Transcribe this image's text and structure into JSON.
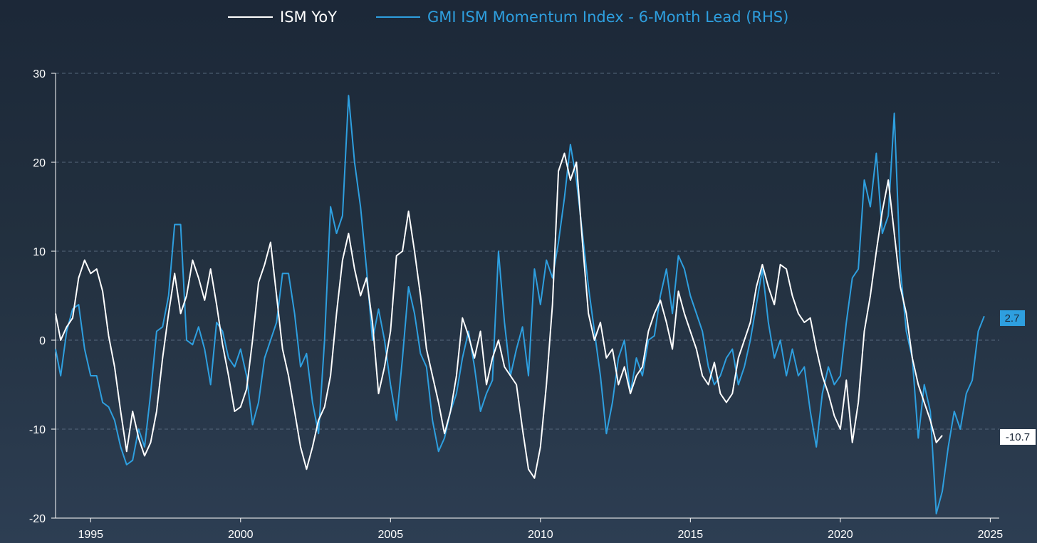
{
  "chart_data": {
    "type": "line",
    "title": "",
    "xlabel": "",
    "ylabel": "",
    "xlim": [
      1993.83,
      2025.3
    ],
    "ylim": [
      -20,
      30
    ],
    "x_ticks": [
      "1995",
      "2000",
      "2005",
      "2010",
      "2015",
      "2020",
      "2025"
    ],
    "y_ticks": [
      "30",
      "20",
      "10",
      "0",
      "-10",
      "-20"
    ],
    "grid": true,
    "legend_position": "top-center",
    "series": [
      {
        "name": "ISM YoY",
        "color": "#ffffff",
        "last_value_label": "-10.7",
        "points": [
          [
            1993.83,
            3.0
          ],
          [
            1994.0,
            0.0
          ],
          [
            1994.2,
            1.5
          ],
          [
            1994.4,
            2.5
          ],
          [
            1994.6,
            7.0
          ],
          [
            1994.8,
            9.0
          ],
          [
            1995.0,
            7.5
          ],
          [
            1995.2,
            8.0
          ],
          [
            1995.4,
            5.5
          ],
          [
            1995.6,
            0.5
          ],
          [
            1995.8,
            -3.0
          ],
          [
            1996.0,
            -8.0
          ],
          [
            1996.2,
            -12.5
          ],
          [
            1996.4,
            -8.0
          ],
          [
            1996.6,
            -11.0
          ],
          [
            1996.8,
            -13.0
          ],
          [
            1997.0,
            -11.5
          ],
          [
            1997.2,
            -8.0
          ],
          [
            1997.4,
            -2.0
          ],
          [
            1997.6,
            3.0
          ],
          [
            1997.8,
            7.5
          ],
          [
            1998.0,
            3.0
          ],
          [
            1998.2,
            5.0
          ],
          [
            1998.4,
            9.0
          ],
          [
            1998.6,
            7.0
          ],
          [
            1998.8,
            4.5
          ],
          [
            1999.0,
            8.0
          ],
          [
            1999.2,
            4.0
          ],
          [
            1999.4,
            -0.5
          ],
          [
            1999.6,
            -4.0
          ],
          [
            1999.8,
            -8.0
          ],
          [
            2000.0,
            -7.5
          ],
          [
            2000.2,
            -5.5
          ],
          [
            2000.4,
            0.0
          ],
          [
            2000.6,
            6.5
          ],
          [
            2000.8,
            8.5
          ],
          [
            2001.0,
            11.0
          ],
          [
            2001.2,
            5.0
          ],
          [
            2001.4,
            -1.0
          ],
          [
            2001.6,
            -4.0
          ],
          [
            2001.8,
            -8.0
          ],
          [
            2002.0,
            -12.0
          ],
          [
            2002.2,
            -14.5
          ],
          [
            2002.4,
            -12.0
          ],
          [
            2002.6,
            -9.0
          ],
          [
            2002.8,
            -7.5
          ],
          [
            2003.0,
            -4.0
          ],
          [
            2003.2,
            3.0
          ],
          [
            2003.4,
            9.0
          ],
          [
            2003.6,
            12.0
          ],
          [
            2003.8,
            8.0
          ],
          [
            2004.0,
            5.0
          ],
          [
            2004.2,
            7.0
          ],
          [
            2004.4,
            2.0
          ],
          [
            2004.6,
            -6.0
          ],
          [
            2004.8,
            -3.0
          ],
          [
            2005.0,
            1.0
          ],
          [
            2005.2,
            9.5
          ],
          [
            2005.4,
            10.0
          ],
          [
            2005.6,
            14.5
          ],
          [
            2005.8,
            10.0
          ],
          [
            2006.0,
            5.0
          ],
          [
            2006.2,
            -1.0
          ],
          [
            2006.4,
            -4.0
          ],
          [
            2006.6,
            -7.0
          ],
          [
            2006.8,
            -10.5
          ],
          [
            2007.0,
            -8.0
          ],
          [
            2007.2,
            -4.0
          ],
          [
            2007.4,
            2.5
          ],
          [
            2007.6,
            0.5
          ],
          [
            2007.8,
            -2.0
          ],
          [
            2008.0,
            1.0
          ],
          [
            2008.2,
            -5.0
          ],
          [
            2008.4,
            -2.0
          ],
          [
            2008.6,
            0.0
          ],
          [
            2008.8,
            -3.0
          ],
          [
            2009.0,
            -4.0
          ],
          [
            2009.2,
            -5.0
          ],
          [
            2009.4,
            -10.0
          ],
          [
            2009.6,
            -14.5
          ],
          [
            2009.8,
            -15.5
          ],
          [
            2010.0,
            -12.0
          ],
          [
            2010.2,
            -5.0
          ],
          [
            2010.4,
            4.0
          ],
          [
            2010.6,
            19.0
          ],
          [
            2010.8,
            21.0
          ],
          [
            2011.0,
            18.0
          ],
          [
            2011.2,
            20.0
          ],
          [
            2011.4,
            11.0
          ],
          [
            2011.6,
            3.0
          ],
          [
            2011.8,
            0.0
          ],
          [
            2012.0,
            2.0
          ],
          [
            2012.2,
            -2.0
          ],
          [
            2012.4,
            -1.0
          ],
          [
            2012.6,
            -5.0
          ],
          [
            2012.8,
            -3.0
          ],
          [
            2013.0,
            -6.0
          ],
          [
            2013.2,
            -4.0
          ],
          [
            2013.4,
            -3.0
          ],
          [
            2013.6,
            1.0
          ],
          [
            2013.8,
            3.0
          ],
          [
            2014.0,
            4.5
          ],
          [
            2014.2,
            2.0
          ],
          [
            2014.4,
            -1.0
          ],
          [
            2014.6,
            5.5
          ],
          [
            2014.8,
            3.0
          ],
          [
            2015.0,
            1.0
          ],
          [
            2015.2,
            -1.0
          ],
          [
            2015.4,
            -4.0
          ],
          [
            2015.6,
            -5.0
          ],
          [
            2015.8,
            -2.5
          ],
          [
            2016.0,
            -6.0
          ],
          [
            2016.2,
            -7.0
          ],
          [
            2016.4,
            -6.0
          ],
          [
            2016.6,
            -2.0
          ],
          [
            2016.8,
            0.0
          ],
          [
            2017.0,
            2.0
          ],
          [
            2017.2,
            6.0
          ],
          [
            2017.4,
            8.5
          ],
          [
            2017.6,
            6.0
          ],
          [
            2017.8,
            4.0
          ],
          [
            2018.0,
            8.5
          ],
          [
            2018.2,
            8.0
          ],
          [
            2018.4,
            5.0
          ],
          [
            2018.6,
            3.0
          ],
          [
            2018.8,
            2.0
          ],
          [
            2019.0,
            2.5
          ],
          [
            2019.2,
            -1.0
          ],
          [
            2019.4,
            -4.0
          ],
          [
            2019.6,
            -6.0
          ],
          [
            2019.8,
            -8.5
          ],
          [
            2020.0,
            -10.0
          ],
          [
            2020.2,
            -4.5
          ],
          [
            2020.4,
            -11.5
          ],
          [
            2020.6,
            -7.0
          ],
          [
            2020.8,
            1.0
          ],
          [
            2021.0,
            5.0
          ],
          [
            2021.2,
            10.0
          ],
          [
            2021.4,
            14.5
          ],
          [
            2021.6,
            18.0
          ],
          [
            2021.8,
            12.0
          ],
          [
            2022.0,
            6.0
          ],
          [
            2022.2,
            3.0
          ],
          [
            2022.4,
            -2.0
          ],
          [
            2022.6,
            -5.0
          ],
          [
            2022.8,
            -7.0
          ],
          [
            2023.0,
            -9.0
          ],
          [
            2023.2,
            -11.5
          ],
          [
            2023.4,
            -10.7
          ]
        ]
      },
      {
        "name": "GMI ISM Momentum Index - 6-Month Lead (RHS)",
        "color": "#2e9fdf",
        "last_value_label": "2.7",
        "points": [
          [
            1993.83,
            -1.0
          ],
          [
            1994.0,
            -4.0
          ],
          [
            1994.2,
            1.0
          ],
          [
            1994.4,
            3.5
          ],
          [
            1994.6,
            4.0
          ],
          [
            1994.8,
            -1.0
          ],
          [
            1995.0,
            -4.0
          ],
          [
            1995.2,
            -4.0
          ],
          [
            1995.4,
            -7.0
          ],
          [
            1995.6,
            -7.5
          ],
          [
            1995.8,
            -9.0
          ],
          [
            1996.0,
            -12.0
          ],
          [
            1996.2,
            -14.0
          ],
          [
            1996.4,
            -13.5
          ],
          [
            1996.6,
            -10.0
          ],
          [
            1996.8,
            -12.0
          ],
          [
            1997.0,
            -6.0
          ],
          [
            1997.2,
            1.0
          ],
          [
            1997.4,
            1.5
          ],
          [
            1997.6,
            5.0
          ],
          [
            1997.8,
            13.0
          ],
          [
            1998.0,
            13.0
          ],
          [
            1998.2,
            0.0
          ],
          [
            1998.4,
            -0.5
          ],
          [
            1998.6,
            1.5
          ],
          [
            1998.8,
            -1.0
          ],
          [
            1999.0,
            -5.0
          ],
          [
            1999.2,
            2.0
          ],
          [
            1999.4,
            1.0
          ],
          [
            1999.6,
            -2.0
          ],
          [
            1999.8,
            -3.0
          ],
          [
            2000.0,
            -1.0
          ],
          [
            2000.2,
            -4.0
          ],
          [
            2000.4,
            -9.5
          ],
          [
            2000.6,
            -7.0
          ],
          [
            2000.8,
            -2.0
          ],
          [
            2001.0,
            0.0
          ],
          [
            2001.2,
            2.0
          ],
          [
            2001.4,
            7.5
          ],
          [
            2001.6,
            7.5
          ],
          [
            2001.8,
            3.0
          ],
          [
            2002.0,
            -3.0
          ],
          [
            2002.2,
            -1.5
          ],
          [
            2002.4,
            -7.0
          ],
          [
            2002.6,
            -10.5
          ],
          [
            2002.8,
            0.0
          ],
          [
            2003.0,
            15.0
          ],
          [
            2003.2,
            12.0
          ],
          [
            2003.4,
            14.0
          ],
          [
            2003.6,
            27.5
          ],
          [
            2003.8,
            20.0
          ],
          [
            2004.0,
            15.0
          ],
          [
            2004.2,
            8.0
          ],
          [
            2004.4,
            0.0
          ],
          [
            2004.6,
            3.5
          ],
          [
            2004.8,
            0.0
          ],
          [
            2005.0,
            -5.0
          ],
          [
            2005.2,
            -9.0
          ],
          [
            2005.4,
            -2.0
          ],
          [
            2005.6,
            6.0
          ],
          [
            2005.8,
            3.0
          ],
          [
            2006.0,
            -1.5
          ],
          [
            2006.2,
            -3.0
          ],
          [
            2006.4,
            -9.0
          ],
          [
            2006.6,
            -12.5
          ],
          [
            2006.8,
            -11.0
          ],
          [
            2007.0,
            -8.0
          ],
          [
            2007.2,
            -6.0
          ],
          [
            2007.4,
            -2.0
          ],
          [
            2007.6,
            1.0
          ],
          [
            2007.8,
            -3.0
          ],
          [
            2008.0,
            -8.0
          ],
          [
            2008.2,
            -6.0
          ],
          [
            2008.4,
            -4.5
          ],
          [
            2008.6,
            10.0
          ],
          [
            2008.8,
            2.0
          ],
          [
            2009.0,
            -4.0
          ],
          [
            2009.2,
            -1.0
          ],
          [
            2009.4,
            1.5
          ],
          [
            2009.6,
            -4.0
          ],
          [
            2009.8,
            8.0
          ],
          [
            2010.0,
            4.0
          ],
          [
            2010.2,
            9.0
          ],
          [
            2010.4,
            7.0
          ],
          [
            2010.6,
            11.0
          ],
          [
            2010.8,
            16.0
          ],
          [
            2011.0,
            22.0
          ],
          [
            2011.2,
            18.0
          ],
          [
            2011.4,
            12.0
          ],
          [
            2011.6,
            6.0
          ],
          [
            2011.8,
            1.0
          ],
          [
            2012.0,
            -4.0
          ],
          [
            2012.2,
            -10.5
          ],
          [
            2012.4,
            -7.0
          ],
          [
            2012.6,
            -2.0
          ],
          [
            2012.8,
            0.0
          ],
          [
            2013.0,
            -6.0
          ],
          [
            2013.2,
            -2.0
          ],
          [
            2013.4,
            -4.0
          ],
          [
            2013.6,
            0.0
          ],
          [
            2013.8,
            0.5
          ],
          [
            2014.0,
            5.0
          ],
          [
            2014.2,
            8.0
          ],
          [
            2014.4,
            3.0
          ],
          [
            2014.6,
            9.5
          ],
          [
            2014.8,
            8.0
          ],
          [
            2015.0,
            5.0
          ],
          [
            2015.2,
            3.0
          ],
          [
            2015.4,
            1.0
          ],
          [
            2015.6,
            -3.0
          ],
          [
            2015.8,
            -5.0
          ],
          [
            2016.0,
            -4.0
          ],
          [
            2016.2,
            -2.0
          ],
          [
            2016.4,
            -1.0
          ],
          [
            2016.6,
            -5.0
          ],
          [
            2016.8,
            -3.0
          ],
          [
            2017.0,
            0.0
          ],
          [
            2017.2,
            4.0
          ],
          [
            2017.4,
            8.0
          ],
          [
            2017.6,
            2.0
          ],
          [
            2017.8,
            -2.0
          ],
          [
            2018.0,
            0.0
          ],
          [
            2018.2,
            -4.0
          ],
          [
            2018.4,
            -1.0
          ],
          [
            2018.6,
            -4.0
          ],
          [
            2018.8,
            -3.0
          ],
          [
            2019.0,
            -8.0
          ],
          [
            2019.2,
            -12.0
          ],
          [
            2019.4,
            -6.0
          ],
          [
            2019.6,
            -3.0
          ],
          [
            2019.8,
            -5.0
          ],
          [
            2020.0,
            -4.0
          ],
          [
            2020.2,
            2.0
          ],
          [
            2020.4,
            7.0
          ],
          [
            2020.6,
            8.0
          ],
          [
            2020.8,
            18.0
          ],
          [
            2021.0,
            15.0
          ],
          [
            2021.2,
            21.0
          ],
          [
            2021.4,
            12.0
          ],
          [
            2021.6,
            14.0
          ],
          [
            2021.8,
            25.5
          ],
          [
            2022.0,
            8.0
          ],
          [
            2022.2,
            1.0
          ],
          [
            2022.4,
            -2.0
          ],
          [
            2022.6,
            -11.0
          ],
          [
            2022.8,
            -5.0
          ],
          [
            2023.0,
            -8.0
          ],
          [
            2023.2,
            -19.5
          ],
          [
            2023.4,
            -17.0
          ],
          [
            2023.6,
            -12.0
          ],
          [
            2023.8,
            -8.0
          ],
          [
            2024.0,
            -10.0
          ],
          [
            2024.2,
            -6.0
          ],
          [
            2024.4,
            -4.5
          ],
          [
            2024.6,
            1.0
          ],
          [
            2024.8,
            2.7
          ]
        ]
      }
    ]
  }
}
